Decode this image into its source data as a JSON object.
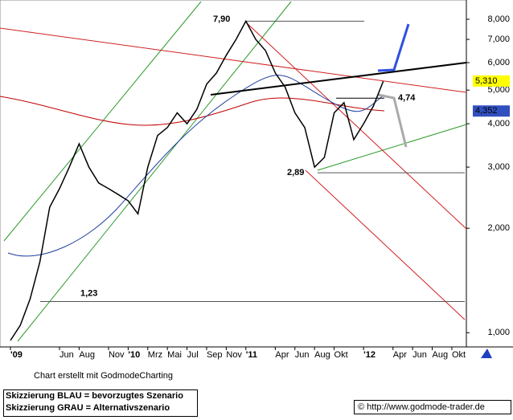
{
  "chart_data": {
    "type": "line",
    "log_scale": true,
    "grid": false,
    "x": [
      0,
      1,
      2,
      3,
      4,
      5,
      6,
      7,
      8,
      9,
      10,
      11,
      12,
      13,
      14,
      15,
      16,
      17,
      18,
      19,
      20,
      21,
      22,
      23,
      24,
      25,
      26,
      27,
      28,
      29,
      30,
      31,
      32,
      33,
      34,
      35,
      36,
      37,
      38
    ],
    "series": [
      {
        "color": "#000000",
        "values": [
          0.95,
          1.05,
          1.25,
          1.6,
          2.3,
          2.6,
          3.0,
          3.5,
          3.0,
          2.7,
          2.6,
          2.5,
          2.4,
          2.2,
          3.0,
          3.7,
          3.9,
          4.3,
          4.0,
          4.4,
          5.2,
          5.6,
          6.3,
          7.0,
          7.9,
          7.0,
          6.5,
          5.6,
          5.1,
          4.3,
          3.9,
          3.0,
          3.2,
          4.3,
          4.6,
          3.6,
          4.0,
          4.5,
          5.3
        ]
      }
    ],
    "xlim": [
      -1.066,
      46.48
    ],
    "xticks": [
      {
        "value": 0,
        "label": "'09"
      },
      {
        "value": 5,
        "label": "Jun"
      },
      {
        "value": 7,
        "label": "Aug"
      },
      {
        "value": 10,
        "label": "Nov"
      },
      {
        "value": 12,
        "label": "'10"
      },
      {
        "value": 14,
        "label": "Mrz"
      },
      {
        "value": 16,
        "label": "Mai"
      },
      {
        "value": 18,
        "label": "Jul"
      },
      {
        "value": 20,
        "label": "Sep"
      },
      {
        "value": 22,
        "label": "Nov"
      },
      {
        "value": 24,
        "label": "'11"
      },
      {
        "value": 27,
        "label": "Apr"
      },
      {
        "value": 29,
        "label": "Jun"
      },
      {
        "value": 31,
        "label": "Aug"
      },
      {
        "value": 33,
        "label": "Okt"
      },
      {
        "value": 36,
        "label": "'12"
      },
      {
        "value": 39,
        "label": "Apr"
      },
      {
        "value": 41,
        "label": "Jun"
      },
      {
        "value": 43,
        "label": "Aug"
      },
      {
        "value": 45,
        "label": "Okt"
      }
    ],
    "ylim": [
      0.91,
      9.09
    ],
    "yticks": [
      {
        "value": 1,
        "label": "1,000"
      },
      {
        "value": 2,
        "label": "2,000"
      },
      {
        "value": 3,
        "label": "3,000"
      },
      {
        "value": 4,
        "label": "4,000"
      },
      {
        "value": 5,
        "label": "5,000"
      },
      {
        "value": 6,
        "label": "6,000"
      },
      {
        "value": 7,
        "label": "7,000"
      },
      {
        "value": 8,
        "label": "8,000"
      }
    ],
    "levels": [
      {
        "value": 7.9,
        "label": "7,90"
      },
      {
        "value": 2.89,
        "label": "2,89"
      },
      {
        "value": 1.23,
        "label": "1,23"
      },
      {
        "value": 4.74,
        "label": "4,74"
      }
    ],
    "price_labels": [
      {
        "value": 5.31,
        "label": "5,310",
        "color": "#ffff00"
      },
      {
        "value": 4.352,
        "label": "4,352",
        "color": "#3050c0"
      }
    ],
    "credit": "Chart erstellt mit GodmodeCharting",
    "notes": [
      "Skizzierung BLAU = bevorzugtes Szenario",
      "Skizzierung GRAU = Alternativszenario"
    ],
    "url": "© http://www.godmode-trader.de"
  }
}
